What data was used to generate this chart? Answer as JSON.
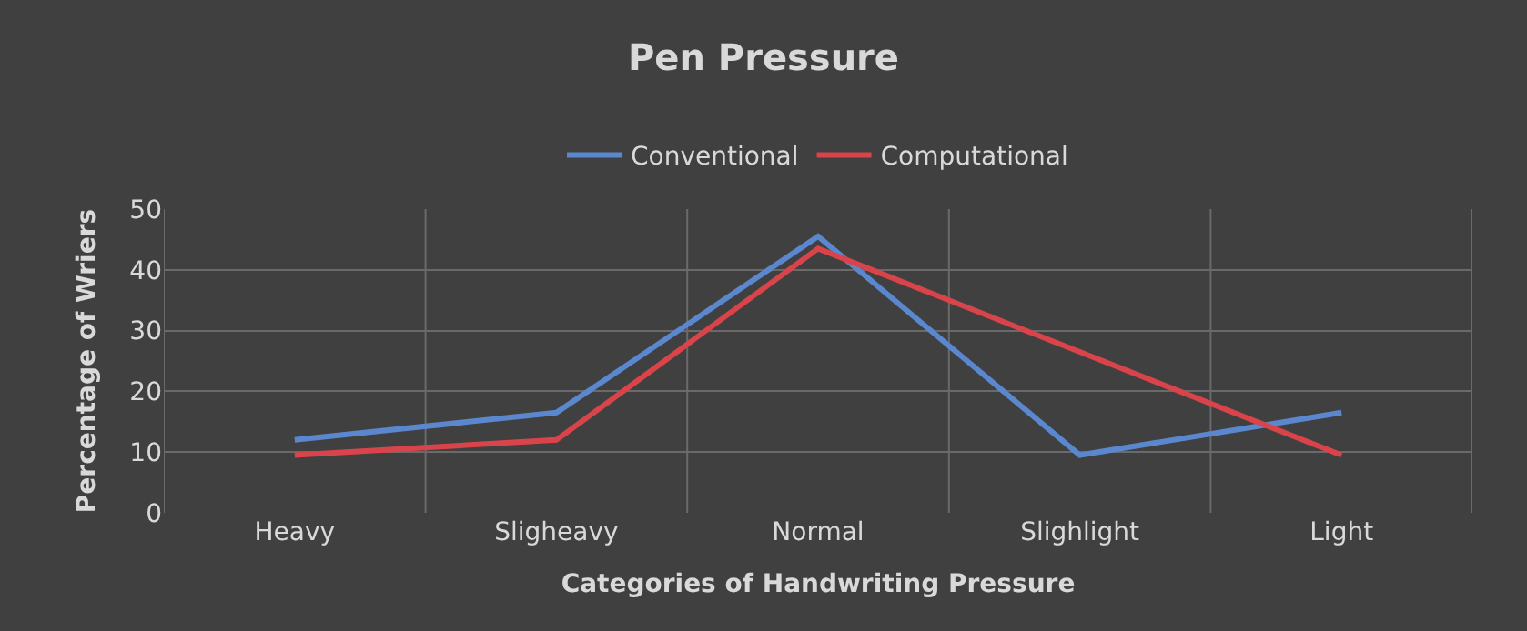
{
  "chart_data": {
    "type": "line",
    "title": "Pen Pressure",
    "xlabel": "Categories of Handwriting Pressure",
    "ylabel": "Percentage of Wriers",
    "categories": [
      "Heavy",
      "Sligheavy",
      "Normal",
      "Slighlight",
      "Light"
    ],
    "series": [
      {
        "name": "Conventional",
        "color": "#5b87cf",
        "values": [
          12,
          16.5,
          45.5,
          9.5,
          16.5
        ]
      },
      {
        "name": "Computational",
        "color": "#d9434a",
        "values": [
          9.5,
          12,
          43.5,
          26.5,
          9.5
        ]
      }
    ],
    "ylim": [
      0,
      50
    ],
    "yticks": [
      0,
      10,
      20,
      30,
      40,
      50
    ],
    "grid": true,
    "legend": "top",
    "marker": "none",
    "line_style": "solid"
  }
}
